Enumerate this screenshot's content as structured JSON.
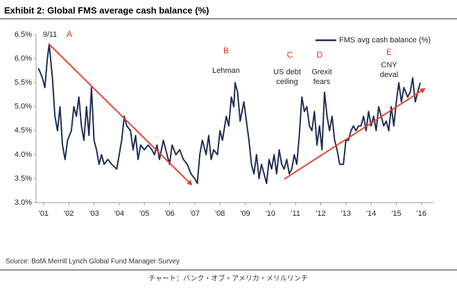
{
  "chart_data": {
    "type": "line",
    "title": "Exhibit 2: Global FMS average cash balance (%)",
    "source": "Source: BofA Merrill Lynch Global Fund Manager Survey",
    "credit": "チャート：バンク・オブ・アメリカ・メリルリンチ",
    "xlim": [
      2000.7,
      2016.5
    ],
    "ylim": [
      3.0,
      6.5
    ],
    "xticks": [
      {
        "value": 2001,
        "label": "'01"
      },
      {
        "value": 2002,
        "label": "'02"
      },
      {
        "value": 2003,
        "label": "'03"
      },
      {
        "value": 2004,
        "label": "'04"
      },
      {
        "value": 2005,
        "label": "'05"
      },
      {
        "value": 2006,
        "label": "'06"
      },
      {
        "value": 2007,
        "label": "'07"
      },
      {
        "value": 2008,
        "label": "'08"
      },
      {
        "value": 2009,
        "label": "'09"
      },
      {
        "value": 2010,
        "label": "'10"
      },
      {
        "value": 2011,
        "label": "'11"
      },
      {
        "value": 2012,
        "label": "'12"
      },
      {
        "value": 2013,
        "label": "'13"
      },
      {
        "value": 2014,
        "label": "'14"
      },
      {
        "value": 2015,
        "label": "'15"
      },
      {
        "value": 2016,
        "label": "'16"
      }
    ],
    "yticks": [
      {
        "value": 3.0,
        "label": "3.0%"
      },
      {
        "value": 3.5,
        "label": "3.5%"
      },
      {
        "value": 4.0,
        "label": "4.0%"
      },
      {
        "value": 4.5,
        "label": "4.5%"
      },
      {
        "value": 5.0,
        "label": "5.0%"
      },
      {
        "value": 5.5,
        "label": "5.5%"
      },
      {
        "value": 6.0,
        "label": "6.0%"
      },
      {
        "value": 6.5,
        "label": "6.5%"
      }
    ],
    "legend": "top-right",
    "x": [
      2000.8,
      2000.95,
      2001.05,
      2001.15,
      2001.22,
      2001.35,
      2001.45,
      2001.55,
      2001.65,
      2001.75,
      2001.85,
      2001.95,
      2002.1,
      2002.2,
      2002.3,
      2002.4,
      2002.5,
      2002.6,
      2002.7,
      2002.8,
      2002.9,
      2003.0,
      2003.1,
      2003.2,
      2003.3,
      2003.4,
      2003.55,
      2003.7,
      2003.9,
      2004.0,
      2004.1,
      2004.2,
      2004.3,
      2004.45,
      2004.55,
      2004.65,
      2004.75,
      2004.85,
      2005.0,
      2005.15,
      2005.3,
      2005.4,
      2005.5,
      2005.6,
      2005.75,
      2005.9,
      2006.0,
      2006.1,
      2006.25,
      2006.4,
      2006.55,
      2006.7,
      2006.85,
      2007.0,
      2007.1,
      2007.2,
      2007.3,
      2007.45,
      2007.55,
      2007.65,
      2007.75,
      2007.9,
      2008.0,
      2008.1,
      2008.25,
      2008.35,
      2008.45,
      2008.55,
      2008.6,
      2008.7,
      2008.8,
      2008.95,
      2009.05,
      2009.15,
      2009.25,
      2009.35,
      2009.45,
      2009.55,
      2009.65,
      2009.75,
      2009.85,
      2009.95,
      2010.05,
      2010.15,
      2010.25,
      2010.35,
      2010.45,
      2010.55,
      2010.65,
      2010.75,
      2010.85,
      2010.95,
      2011.05,
      2011.15,
      2011.25,
      2011.35,
      2011.45,
      2011.55,
      2011.65,
      2011.75,
      2011.85,
      2011.95,
      2012.05,
      2012.15,
      2012.25,
      2012.35,
      2012.45,
      2012.55,
      2012.65,
      2012.75,
      2012.9,
      2013.0,
      2013.1,
      2013.2,
      2013.3,
      2013.4,
      2013.5,
      2013.6,
      2013.7,
      2013.8,
      2013.9,
      2014.0,
      2014.1,
      2014.2,
      2014.3,
      2014.4,
      2014.5,
      2014.6,
      2014.7,
      2014.8,
      2014.9,
      2015.0,
      2015.1,
      2015.2,
      2015.3,
      2015.45,
      2015.55,
      2015.65,
      2015.75,
      2015.85,
      2015.95
    ],
    "series": [
      {
        "name": "FMS avg cash balance (%)",
        "color": "#1f2d55",
        "values": [
          5.8,
          5.6,
          5.4,
          6.0,
          6.3,
          5.6,
          4.8,
          4.5,
          5.0,
          4.2,
          3.9,
          4.3,
          4.5,
          5.0,
          4.8,
          5.2,
          4.6,
          4.3,
          5.0,
          4.4,
          5.4,
          4.3,
          4.1,
          3.8,
          4.0,
          3.8,
          3.9,
          3.8,
          3.7,
          4.0,
          4.3,
          4.8,
          4.6,
          4.5,
          4.1,
          4.4,
          3.9,
          4.2,
          4.1,
          4.2,
          4.1,
          4.0,
          4.2,
          3.9,
          4.3,
          4.0,
          3.8,
          4.2,
          4.0,
          4.1,
          3.9,
          3.8,
          3.6,
          3.5,
          3.4,
          4.0,
          4.3,
          4.0,
          4.4,
          3.9,
          4.1,
          4.0,
          4.5,
          4.3,
          4.8,
          4.6,
          5.2,
          5.0,
          5.5,
          5.3,
          4.7,
          5.1,
          4.7,
          4.3,
          3.8,
          3.6,
          4.0,
          3.5,
          3.8,
          3.6,
          3.4,
          3.9,
          3.7,
          4.0,
          3.6,
          4.1,
          3.8,
          3.7,
          3.9,
          3.6,
          3.7,
          4.0,
          3.8,
          4.4,
          5.2,
          4.9,
          5.0,
          4.6,
          4.5,
          4.9,
          4.2,
          4.6,
          4.1,
          5.3,
          4.8,
          4.5,
          4.8,
          4.3,
          4.1,
          3.8,
          3.8,
          4.3,
          4.3,
          4.5,
          4.6,
          4.5,
          4.6,
          4.6,
          4.8,
          4.5,
          4.9,
          4.6,
          4.8,
          4.5,
          5.0,
          4.8,
          4.6,
          4.7,
          4.5,
          5.0,
          4.6,
          5.1,
          5.5,
          5.1,
          5.4,
          5.2,
          5.3,
          5.6,
          5.1,
          5.3,
          5.5
        ]
      }
    ],
    "annotations": [
      {
        "letter": "A",
        "text": [
          "9/11"
        ]
      },
      {
        "letter": "B",
        "text": [
          "Lehman"
        ]
      },
      {
        "letter": "C",
        "text": [
          "US debt",
          "ceiling"
        ]
      },
      {
        "letter": "D",
        "text": [
          "Grexit",
          "fears"
        ]
      },
      {
        "letter": "E",
        "text": [
          "CNY",
          "deval"
        ]
      }
    ]
  }
}
